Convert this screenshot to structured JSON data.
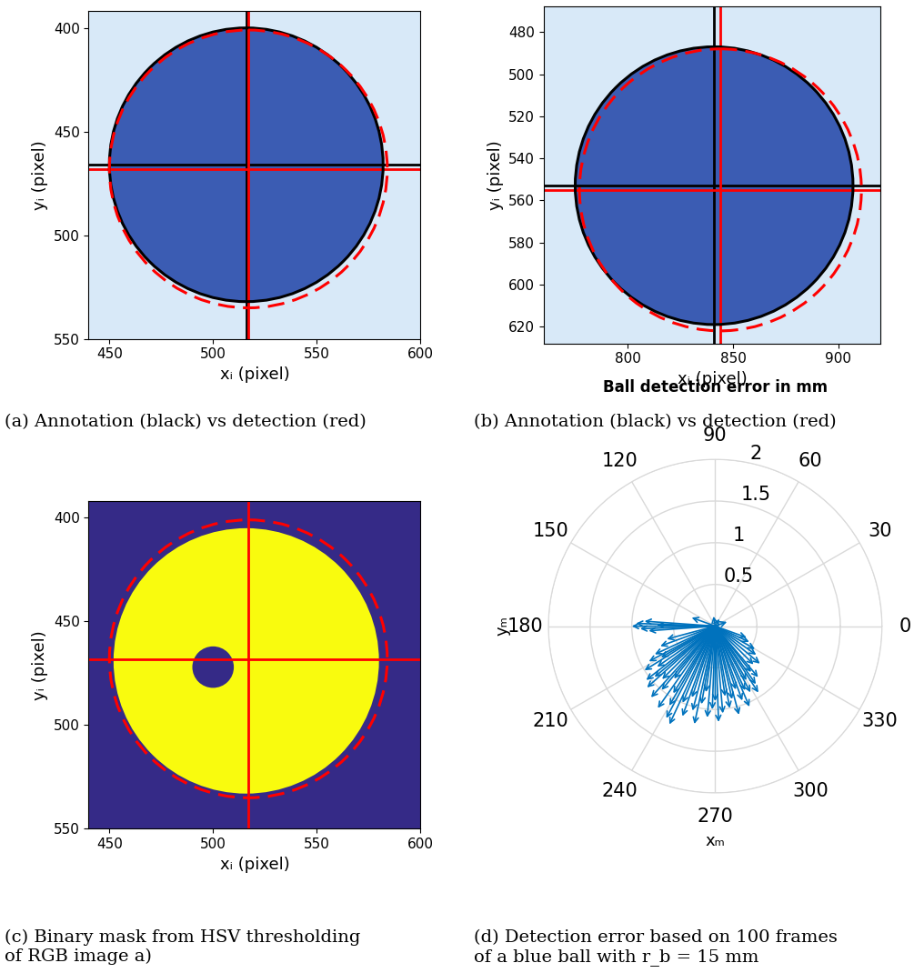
{
  "chart_data": [
    {
      "type": "image",
      "caption": "(a) Annotation (black) vs detection (red)",
      "xlabel": "xᵢ (pixel)",
      "ylabel": "yᵢ (pixel)",
      "xlim": [
        440,
        600
      ],
      "ylim": [
        550,
        392
      ],
      "xticks": [
        450,
        500,
        550,
        600
      ],
      "yticks": [
        400,
        450,
        500,
        550
      ],
      "color": "#d8e9f8",
      "series": [
        {
          "type": "fill",
          "color": "#3b5cb3",
          "center": [
            516,
            466
          ],
          "radius": 66
        },
        {
          "type": "circle",
          "color": "#000000",
          "line_style": "solid",
          "marker": "cross",
          "center": [
            516,
            466
          ],
          "radius": 66
        },
        {
          "type": "circle",
          "color": "#ff0000",
          "line_style": "dashed",
          "marker": "cross",
          "center": [
            517,
            468
          ],
          "radius": 67
        }
      ]
    },
    {
      "type": "image",
      "caption": "(b) Annotation (black) vs detection (red)",
      "xlabel": "xᵢ (pixel)",
      "ylabel": "yᵢ (pixel)",
      "xlim": [
        760,
        920
      ],
      "ylim": [
        628,
        468
      ],
      "xticks": [
        800,
        850,
        900
      ],
      "yticks": [
        480,
        500,
        520,
        540,
        560,
        580,
        600,
        620
      ],
      "color": "#d8e9f8",
      "series": [
        {
          "type": "fill",
          "color": "#3b5cb3",
          "center": [
            841,
            553
          ],
          "radius": 66
        },
        {
          "type": "circle",
          "color": "#000000",
          "line_style": "solid",
          "marker": "cross",
          "center": [
            841,
            553
          ],
          "radius": 66
        },
        {
          "type": "circle",
          "color": "#ff0000",
          "line_style": "dashed",
          "marker": "cross",
          "center": [
            844,
            555
          ],
          "radius": 67
        }
      ]
    },
    {
      "type": "image",
      "caption": "(c) Binary mask from HSV thresholding\nof RGB image a)",
      "xlabel": "xᵢ (pixel)",
      "ylabel": "yᵢ (pixel)",
      "xlim": [
        440,
        600
      ],
      "ylim": [
        550,
        392
      ],
      "xticks": [
        450,
        500,
        550,
        600
      ],
      "yticks": [
        400,
        450,
        500,
        550
      ],
      "color": "#352a87",
      "series": [
        {
          "type": "fill",
          "color": "#f9fb0e",
          "center": [
            516,
            469
          ],
          "radius": 64
        },
        {
          "type": "fill",
          "color": "#352a87",
          "center": [
            500,
            472
          ],
          "radius": 10
        },
        {
          "type": "circle",
          "color": "#ff0000",
          "line_style": "dashed",
          "marker": "cross",
          "center": [
            517,
            468
          ],
          "radius": 67
        }
      ]
    },
    {
      "type": "polar",
      "title": "Ball detection error in mm",
      "caption": "(d) Detection error based on 100 frames\nof a blue ball with r_b = 15 mm",
      "xlabel": "xₘ",
      "ylabel": "yₘ",
      "xticks": [
        0,
        30,
        60,
        90,
        120,
        150,
        180,
        210,
        240,
        270,
        300,
        330
      ],
      "ylim": [
        0,
        2
      ],
      "yticks": [
        0.5,
        1,
        1.5,
        2
      ],
      "grid": true,
      "color": "#0072bd",
      "angles": [
        178,
        180,
        182,
        176,
        184,
        179,
        195,
        200,
        205,
        208,
        210,
        212,
        215,
        218,
        220,
        222,
        225,
        228,
        230,
        232,
        235,
        238,
        240,
        242,
        245,
        247,
        250,
        252,
        255,
        258,
        260,
        262,
        265,
        268,
        270,
        272,
        275,
        278,
        280,
        283,
        285,
        288,
        290,
        293,
        295,
        298,
        300,
        303,
        305,
        308,
        310,
        315,
        320,
        325,
        330,
        335,
        340,
        20,
        60,
        100,
        160
      ],
      "values": [
        0.95,
        1.0,
        0.9,
        0.85,
        0.8,
        0.7,
        0.6,
        0.7,
        0.8,
        0.9,
        0.75,
        1.0,
        0.85,
        1.05,
        0.95,
        1.1,
        0.9,
        1.15,
        1.0,
        0.8,
        1.2,
        0.95,
        1.1,
        1.25,
        1.3,
        1.0,
        1.15,
        0.9,
        1.05,
        1.2,
        0.95,
        0.8,
        1.1,
        1.0,
        0.9,
        1.15,
        1.05,
        0.85,
        1.0,
        0.9,
        1.1,
        0.8,
        0.95,
        1.05,
        0.85,
        0.9,
        0.75,
        0.95,
        0.85,
        0.7,
        0.8,
        0.65,
        0.7,
        0.6,
        0.55,
        0.45,
        0.4,
        0.15,
        0.1,
        0.12,
        0.3
      ]
    }
  ]
}
